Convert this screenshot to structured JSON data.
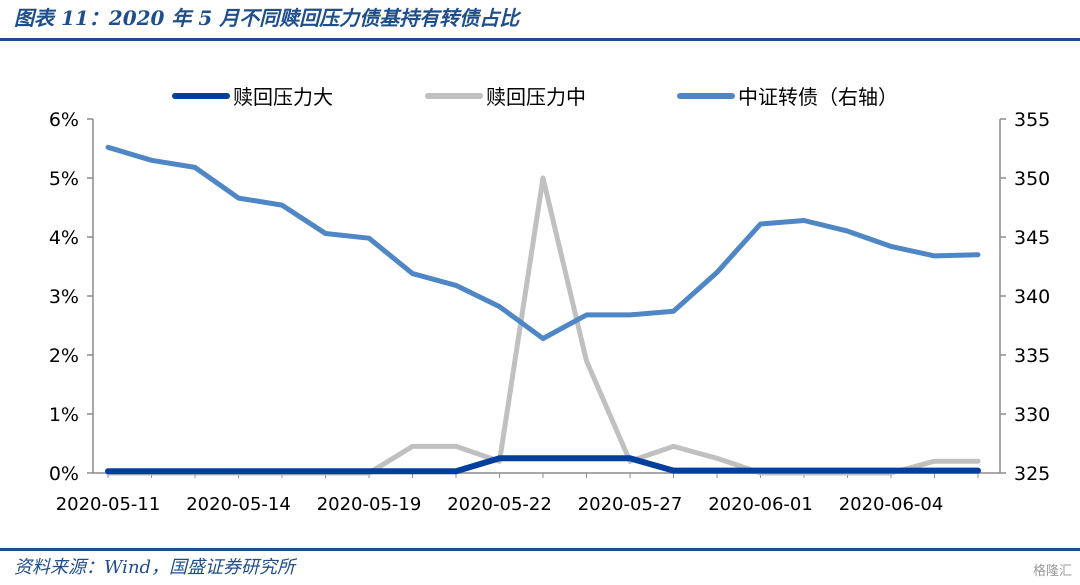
{
  "header": {
    "title": "图表 11：2020 年 5 月不同赎回压力债基持有转债占比"
  },
  "footer": {
    "source": "资料来源：Wind，国盛证券研究所",
    "watermark": "格隆汇"
  },
  "chart_data": {
    "type": "line",
    "title": "",
    "xlabel": "",
    "legend_position": "top",
    "grid": false,
    "x": [
      "2020-05-11",
      "2020-05-12",
      "2020-05-13",
      "2020-05-14",
      "2020-05-15",
      "2020-05-18",
      "2020-05-19",
      "2020-05-20",
      "2020-05-21",
      "2020-05-22",
      "2020-05-25",
      "2020-05-26",
      "2020-05-27",
      "2020-05-28",
      "2020-05-29",
      "2020-06-01",
      "2020-06-02",
      "2020-06-03",
      "2020-06-04",
      "2020-06-05",
      "2020-06-08"
    ],
    "x_tick_labels": [
      "2020-05-11",
      "2020-05-14",
      "2020-05-19",
      "2020-05-22",
      "2020-05-27",
      "2020-06-01",
      "2020-06-04"
    ],
    "x_tick_index": [
      0,
      3,
      6,
      9,
      12,
      15,
      18
    ],
    "y_left": {
      "range": [
        0,
        6
      ],
      "ticks": [
        "0%",
        "1%",
        "2%",
        "3%",
        "4%",
        "5%",
        "6%"
      ],
      "tick_values": [
        0,
        1,
        2,
        3,
        4,
        5,
        6
      ]
    },
    "y_right": {
      "range": [
        325,
        355
      ],
      "ticks": [
        "325",
        "330",
        "335",
        "340",
        "345",
        "350",
        "355"
      ],
      "tick_values": [
        325,
        330,
        335,
        340,
        345,
        350,
        355
      ]
    },
    "series": [
      {
        "name": "赎回压力大",
        "axis": "left",
        "color": "#003f9e",
        "width": 6,
        "values": [
          0.03,
          0.03,
          0.03,
          0.03,
          0.03,
          0.03,
          0.03,
          0.03,
          0.03,
          0.25,
          0.25,
          0.25,
          0.25,
          0.04,
          0.04,
          0.04,
          0.04,
          0.04,
          0.04,
          0.04,
          0.04
        ]
      },
      {
        "name": "赎回压力中",
        "axis": "left",
        "color": "#c0c0c0",
        "width": 5,
        "values": [
          0,
          0,
          0,
          0,
          0,
          0,
          0,
          0.45,
          0.45,
          0.2,
          5.0,
          1.9,
          0.2,
          0.45,
          0.25,
          0,
          0,
          0,
          0,
          0.2,
          0.2
        ]
      },
      {
        "name": "中证转债（右轴）",
        "axis": "right",
        "color": "#4f86c6",
        "width": 5,
        "values": [
          352.6,
          351.5,
          350.9,
          348.3,
          347.7,
          345.3,
          344.9,
          341.9,
          340.9,
          339.1,
          336.4,
          338.4,
          338.4,
          338.7,
          342.0,
          346.1,
          346.4,
          345.5,
          344.2,
          343.4,
          343.5
        ]
      }
    ]
  }
}
